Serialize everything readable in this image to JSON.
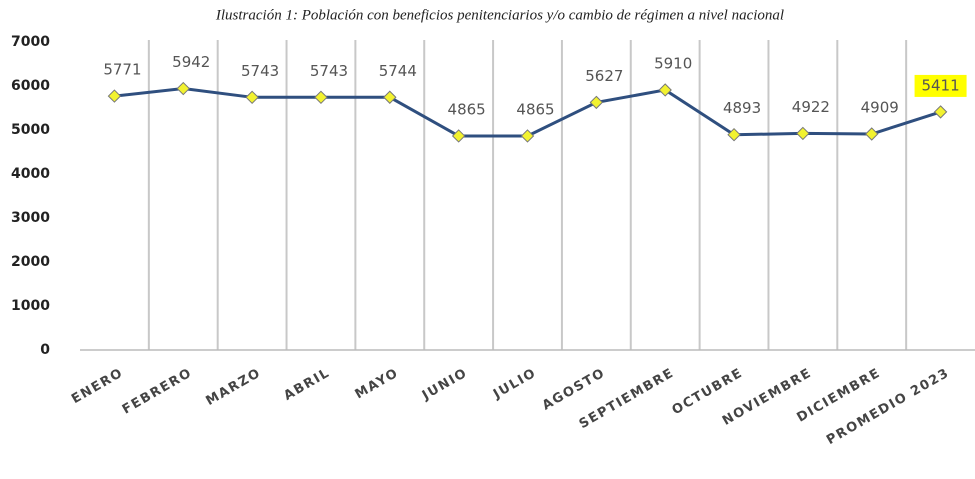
{
  "chart_data": {
    "type": "line",
    "title": "Ilustración 1: Población con beneficios penitenciarios y/o cambio de régimen a nivel nacional",
    "categories": [
      "ENERO",
      "FEBRERO",
      "MARZO",
      "ABRIL",
      "MAYO",
      "JUNIO",
      "JULIO",
      "AGOSTO",
      "SEPTIEMBRE",
      "OCTUBRE",
      "NOVIEMBRE",
      "DICIEMBRE",
      "PROMEDIO 2023"
    ],
    "series": [
      {
        "name": "Población",
        "color": "#2f4f7f",
        "values": [
          5771,
          5942,
          5743,
          5743,
          5744,
          4865,
          4865,
          5627,
          5910,
          4893,
          4922,
          4909,
          5411
        ]
      }
    ],
    "ylim": [
      0,
      7000
    ],
    "yticks": [
      0,
      1000,
      2000,
      3000,
      4000,
      5000,
      6000,
      7000
    ],
    "grid": true,
    "marker_color": "#f2f230"
  }
}
